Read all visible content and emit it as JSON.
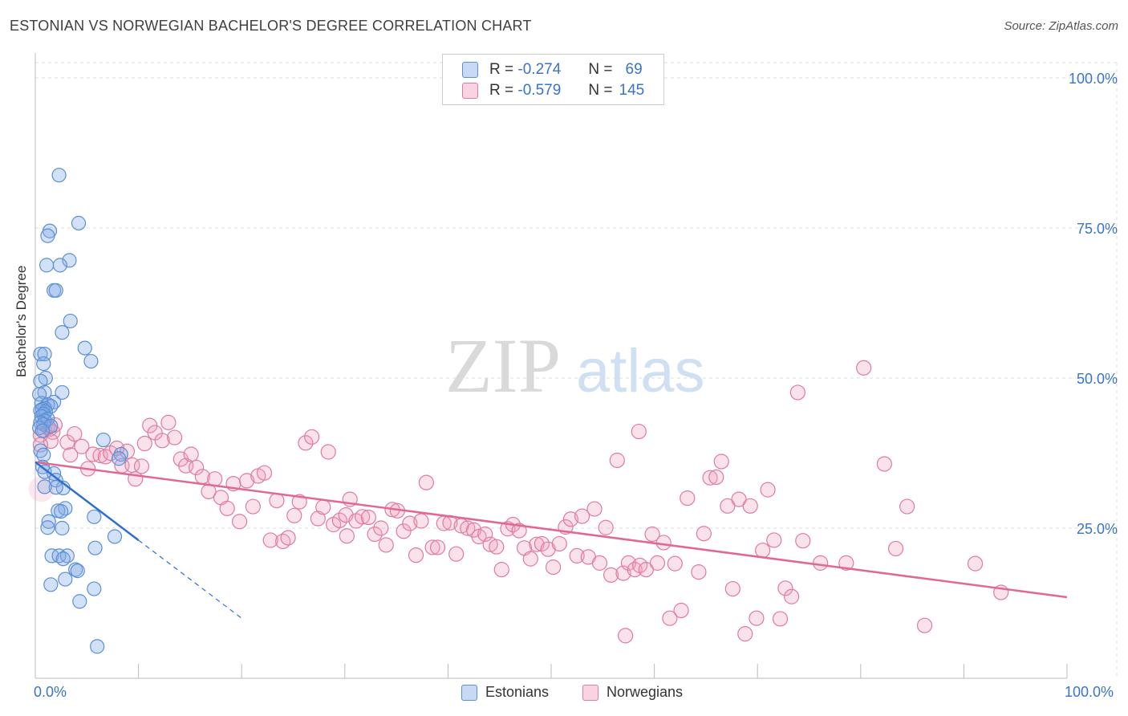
{
  "title": "ESTONIAN VS NORWEGIAN BACHELOR'S DEGREE CORRELATION CHART",
  "source": "Source: ZipAtlas.com",
  "watermark": {
    "zip": "ZIP",
    "atlas": "atlas"
  },
  "colors": {
    "blue": "#5b8fd6",
    "blue_fill": "rgba(130,170,230,0.35)",
    "blue_line": "#2f6fd0",
    "pink": "#e07aa0",
    "pink_fill": "rgba(240,160,190,0.30)",
    "pink_line": "#e06894",
    "axis_text": "#3a74c9",
    "grid": "#dddddd"
  },
  "legend": {
    "rows": [
      {
        "r_label": "R =",
        "r_value": "-0.274",
        "n_label": "N =",
        "n_value": "69"
      },
      {
        "r_label": "R =",
        "r_value": "-0.579",
        "n_label": "N =",
        "n_value": "145"
      }
    ]
  },
  "bottom_legend": {
    "estonians": "Estonians",
    "norwegians": "Norwegians"
  },
  "chart_data": {
    "type": "scatter",
    "title": "ESTONIAN VS NORWEGIAN BACHELOR'S DEGREE CORRELATION CHART",
    "xlabel": "",
    "ylabel": "Bachelor's Degree",
    "xlim": [
      0,
      100
    ],
    "ylim": [
      0,
      105
    ],
    "x_tick_labels": [
      "0.0%",
      "100.0%"
    ],
    "y_ticks": [
      25,
      50,
      75,
      100
    ],
    "y_tick_labels": [
      "25.0%",
      "50.0%",
      "75.0%",
      "100.0%"
    ],
    "grid": true,
    "series": [
      {
        "name": "Estonians",
        "R": -0.274,
        "N": 69,
        "trend": {
          "x0": 0,
          "y0": 36.0,
          "x1": 10,
          "y1": 23.0,
          "dashed_to_x": 20
        },
        "points": [
          [
            2.3,
            83.8
          ],
          [
            4.2,
            75.8
          ],
          [
            1.4,
            74.5
          ],
          [
            1.2,
            73.7
          ],
          [
            3.3,
            69.6
          ],
          [
            1.1,
            68.8
          ],
          [
            2.4,
            68.8
          ],
          [
            1.8,
            64.6
          ],
          [
            2.0,
            64.6
          ],
          [
            3.4,
            59.5
          ],
          [
            2.6,
            57.6
          ],
          [
            4.8,
            55.0
          ],
          [
            0.5,
            54.0
          ],
          [
            0.9,
            54.0
          ],
          [
            5.4,
            52.8
          ],
          [
            0.8,
            52.4
          ],
          [
            1.0,
            50.0
          ],
          [
            0.5,
            49.5
          ],
          [
            0.9,
            47.6
          ],
          [
            2.6,
            47.6
          ],
          [
            0.4,
            47.3
          ],
          [
            1.8,
            46.0
          ],
          [
            0.6,
            45.8
          ],
          [
            1.2,
            45.6
          ],
          [
            1.5,
            45.3
          ],
          [
            0.9,
            45.0
          ],
          [
            0.7,
            44.8
          ],
          [
            0.5,
            44.6
          ],
          [
            1.0,
            44.4
          ],
          [
            0.8,
            44.0
          ],
          [
            0.6,
            43.6
          ],
          [
            1.2,
            43.2
          ],
          [
            0.9,
            42.9
          ],
          [
            0.5,
            42.6
          ],
          [
            0.8,
            42.3
          ],
          [
            1.5,
            42.0
          ],
          [
            0.4,
            41.7
          ],
          [
            0.7,
            41.2
          ],
          [
            6.6,
            39.7
          ],
          [
            0.5,
            37.9
          ],
          [
            0.8,
            37.2
          ],
          [
            8.3,
            37.3
          ],
          [
            8.1,
            36.6
          ],
          [
            0.7,
            35.2
          ],
          [
            0.9,
            34.4
          ],
          [
            1.8,
            34.1
          ],
          [
            2.0,
            33.0
          ],
          [
            2.7,
            31.7
          ],
          [
            2.0,
            31.8
          ],
          [
            0.9,
            31.9
          ],
          [
            2.9,
            28.3
          ],
          [
            2.2,
            27.9
          ],
          [
            2.5,
            27.8
          ],
          [
            5.7,
            26.9
          ],
          [
            1.3,
            26.1
          ],
          [
            2.6,
            25.0
          ],
          [
            1.2,
            25.1
          ],
          [
            7.7,
            23.6
          ],
          [
            5.8,
            21.7
          ],
          [
            1.6,
            20.4
          ],
          [
            2.3,
            20.4
          ],
          [
            3.1,
            20.4
          ],
          [
            2.7,
            19.9
          ],
          [
            3.9,
            18.1
          ],
          [
            4.1,
            17.9
          ],
          [
            2.9,
            16.5
          ],
          [
            1.5,
            15.6
          ],
          [
            5.7,
            14.9
          ],
          [
            4.3,
            12.8
          ],
          [
            6.0,
            5.3
          ]
        ]
      },
      {
        "name": "Norwegians",
        "R": -0.579,
        "N": 145,
        "trend": {
          "x0": 0,
          "y0": 36.0,
          "x1": 100,
          "y1": 13.5
        },
        "points": [
          [
            0.5,
            40.5
          ],
          [
            0.9,
            41.3
          ],
          [
            1.2,
            41.9
          ],
          [
            1.4,
            41.5
          ],
          [
            1.7,
            41.0
          ],
          [
            1.9,
            42.2
          ],
          [
            1.5,
            39.5
          ],
          [
            0.5,
            38.9
          ],
          [
            3.1,
            39.3
          ],
          [
            3.8,
            40.7
          ],
          [
            4.5,
            38.6
          ],
          [
            3.4,
            37.2
          ],
          [
            5.1,
            34.9
          ],
          [
            5.6,
            37.3
          ],
          [
            6.3,
            37.1
          ],
          [
            6.8,
            36.9
          ],
          [
            7.3,
            37.5
          ],
          [
            7.9,
            38.3
          ],
          [
            8.4,
            35.4
          ],
          [
            8.9,
            37.8
          ],
          [
            9.4,
            35.5
          ],
          [
            9.7,
            33.2
          ],
          [
            10.3,
            35.3
          ],
          [
            10.6,
            39.1
          ],
          [
            11.1,
            42.1
          ],
          [
            11.6,
            40.9
          ],
          [
            12.3,
            39.6
          ],
          [
            12.9,
            42.6
          ],
          [
            13.5,
            40.1
          ],
          [
            14.1,
            36.5
          ],
          [
            14.6,
            35.4
          ],
          [
            15.1,
            37.3
          ],
          [
            15.6,
            35.1
          ],
          [
            16.2,
            33.6
          ],
          [
            16.8,
            31.1
          ],
          [
            17.4,
            33.2
          ],
          [
            18.0,
            30.1
          ],
          [
            18.6,
            28.3
          ],
          [
            19.2,
            32.4
          ],
          [
            19.8,
            26.1
          ],
          [
            20.5,
            32.9
          ],
          [
            21.1,
            28.6
          ],
          [
            21.6,
            33.7
          ],
          [
            22.2,
            34.2
          ],
          [
            22.8,
            23.0
          ],
          [
            23.4,
            29.6
          ],
          [
            24.0,
            22.8
          ],
          [
            24.5,
            23.4
          ],
          [
            25.1,
            27.1
          ],
          [
            25.6,
            29.4
          ],
          [
            26.2,
            39.2
          ],
          [
            26.8,
            40.2
          ],
          [
            27.4,
            26.6
          ],
          [
            27.9,
            28.5
          ],
          [
            28.4,
            37.7
          ],
          [
            28.9,
            25.6
          ],
          [
            29.5,
            26.3
          ],
          [
            30.1,
            27.2
          ],
          [
            30.5,
            29.8
          ],
          [
            30.2,
            23.7
          ],
          [
            31.1,
            26.2
          ],
          [
            31.7,
            26.9
          ],
          [
            32.3,
            26.8
          ],
          [
            32.9,
            24.0
          ],
          [
            33.5,
            25.0
          ],
          [
            34.0,
            22.2
          ],
          [
            34.6,
            28.1
          ],
          [
            35.1,
            27.9
          ],
          [
            35.7,
            24.5
          ],
          [
            36.3,
            25.8
          ],
          [
            36.9,
            20.5
          ],
          [
            37.4,
            26.2
          ],
          [
            37.9,
            32.6
          ],
          [
            38.5,
            21.8
          ],
          [
            39.0,
            21.8
          ],
          [
            39.6,
            25.8
          ],
          [
            40.2,
            25.9
          ],
          [
            40.8,
            20.7
          ],
          [
            41.3,
            25.4
          ],
          [
            41.9,
            25.0
          ],
          [
            42.5,
            24.7
          ],
          [
            43.0,
            23.6
          ],
          [
            43.6,
            24.0
          ],
          [
            44.1,
            22.3
          ],
          [
            44.7,
            21.9
          ],
          [
            45.2,
            18.1
          ],
          [
            45.8,
            24.9
          ],
          [
            46.3,
            25.6
          ],
          [
            46.9,
            24.6
          ],
          [
            47.4,
            21.7
          ],
          [
            48.0,
            19.9
          ],
          [
            48.6,
            22.3
          ],
          [
            49.1,
            22.4
          ],
          [
            49.7,
            21.5
          ],
          [
            50.2,
            18.5
          ],
          [
            50.8,
            22.4
          ],
          [
            51.4,
            25.2
          ],
          [
            51.9,
            26.5
          ],
          [
            52.5,
            20.4
          ],
          [
            53.0,
            27.0
          ],
          [
            53.6,
            20.2
          ],
          [
            54.2,
            28.2
          ],
          [
            54.7,
            19.2
          ],
          [
            55.3,
            25.1
          ],
          [
            55.8,
            17.2
          ],
          [
            56.4,
            36.3
          ],
          [
            57.0,
            17.5
          ],
          [
            57.5,
            19.2
          ],
          [
            57.2,
            7.1
          ],
          [
            58.1,
            18.1
          ],
          [
            58.6,
            18.8
          ],
          [
            59.2,
            18.1
          ],
          [
            59.8,
            24.0
          ],
          [
            60.3,
            19.2
          ],
          [
            60.9,
            22.6
          ],
          [
            61.5,
            10.0
          ],
          [
            62.0,
            19.1
          ],
          [
            62.6,
            11.3
          ],
          [
            63.2,
            30.0
          ],
          [
            58.5,
            41.1
          ],
          [
            64.3,
            17.7
          ],
          [
            64.8,
            24.1
          ],
          [
            65.4,
            33.4
          ],
          [
            66.0,
            33.5
          ],
          [
            66.5,
            36.1
          ],
          [
            67.1,
            28.7
          ],
          [
            67.6,
            14.9
          ],
          [
            68.2,
            29.8
          ],
          [
            68.8,
            7.4
          ],
          [
            69.3,
            28.7
          ],
          [
            69.9,
            10.0
          ],
          [
            70.5,
            21.3
          ],
          [
            71.0,
            31.4
          ],
          [
            71.6,
            23.0
          ],
          [
            72.2,
            9.9
          ],
          [
            72.7,
            15.0
          ],
          [
            73.3,
            13.6
          ],
          [
            73.9,
            47.6
          ],
          [
            74.4,
            22.9
          ],
          [
            76.1,
            19.2
          ],
          [
            78.6,
            19.2
          ],
          [
            80.3,
            51.7
          ],
          [
            82.3,
            35.7
          ],
          [
            83.4,
            21.6
          ],
          [
            84.5,
            28.6
          ],
          [
            86.2,
            8.8
          ],
          [
            91.1,
            19.1
          ],
          [
            93.6,
            14.3
          ]
        ]
      }
    ]
  }
}
